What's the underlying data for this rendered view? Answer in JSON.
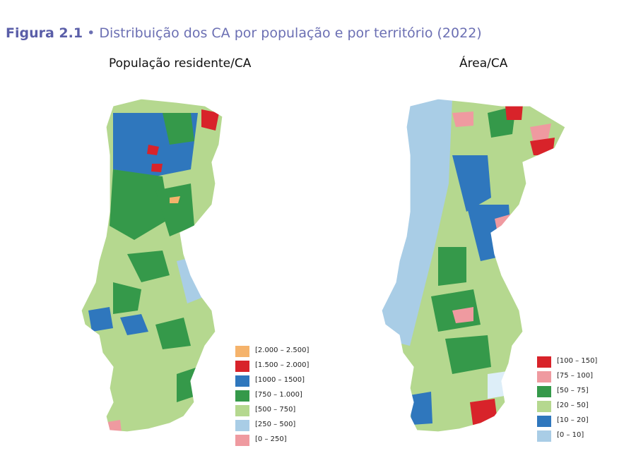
{
  "figure": {
    "number": "Figura 2.1",
    "separator": "•",
    "caption": "Distribuição dos CA por população e por território (2022)"
  },
  "maps": [
    {
      "title": "População residente/CA",
      "legend": [
        {
          "label": "[2.000 – 2.500]",
          "color": "#f5b36b"
        },
        {
          "label": "[1.500 – 2.000]",
          "color": "#d8232a"
        },
        {
          "label": "[1000 – 1500]",
          "color": "#2f77bd"
        },
        {
          "label": "[750 – 1.000]",
          "color": "#35994a"
        },
        {
          "label": "[500 – 750]",
          "color": "#b5d88f"
        },
        {
          "label": "[250 – 500]",
          "color": "#a9cde6"
        },
        {
          "label": "[0 – 250]",
          "color": "#ef9aa0"
        }
      ]
    },
    {
      "title": "Área/CA",
      "legend": [
        {
          "label": "[100 – 150]",
          "color": "#d8232a"
        },
        {
          "label": "[75 – 100]",
          "color": "#ef9aa0"
        },
        {
          "label": "[50 – 75]",
          "color": "#35994a"
        },
        {
          "label": "[20 – 50]",
          "color": "#b5d88f"
        },
        {
          "label": "[10 – 20]",
          "color": "#2f77bd"
        },
        {
          "label": "[0 – 10]",
          "color": "#a9cde6"
        }
      ]
    }
  ]
}
